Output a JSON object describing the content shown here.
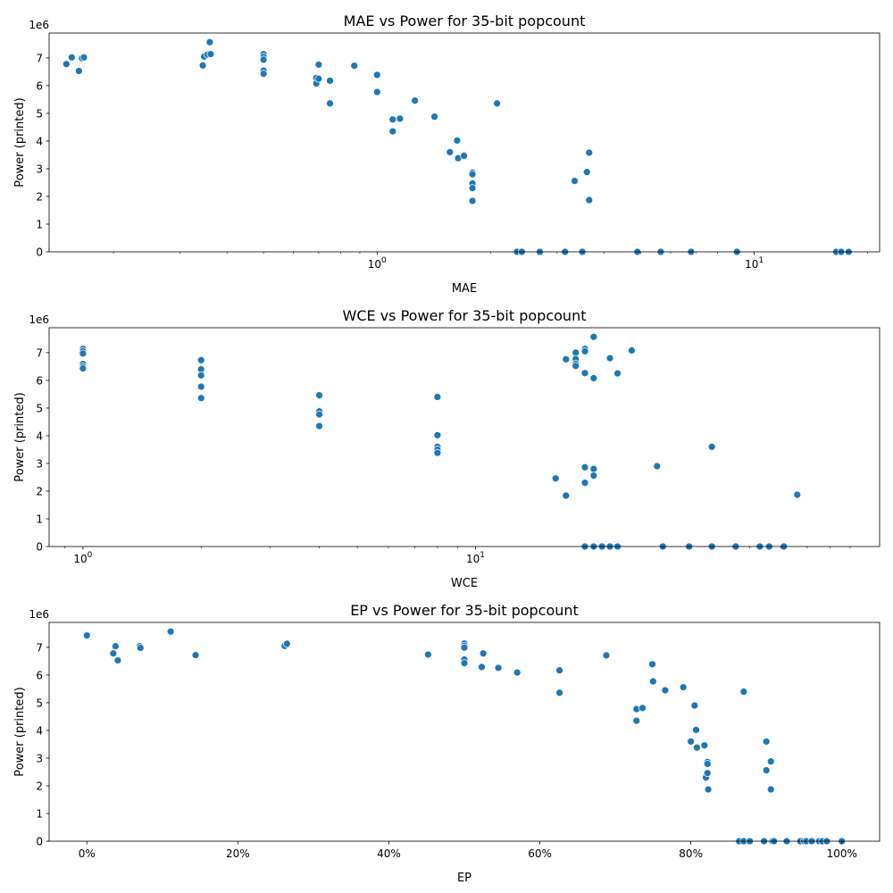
{
  "chart_data": [
    {
      "type": "scatter",
      "title": "MAE vs Power for 35-bit popcount",
      "xlabel": "MAE",
      "ylabel": "Power (printed)",
      "y_offset_text": "1e6",
      "xscale": "log",
      "xlim": [
        0.135,
        21.5
      ],
      "ylim": [
        0,
        7.9
      ],
      "xticks": [
        1,
        10
      ],
      "xtick_labels": [
        "10^0",
        "10^1"
      ],
      "yticks": [
        0,
        1,
        2,
        3,
        4,
        5,
        6,
        7
      ],
      "ytick_labels": [
        "0",
        "1",
        "2",
        "3",
        "4",
        "5",
        "6",
        "7"
      ],
      "color": "#1f77b4",
      "grid": false,
      "points": [
        [
          0.15,
          6.78
        ],
        [
          0.155,
          7.02
        ],
        [
          0.162,
          6.53
        ],
        [
          0.165,
          6.99
        ],
        [
          0.167,
          7.02
        ],
        [
          0.345,
          6.73
        ],
        [
          0.348,
          7.05
        ],
        [
          0.355,
          7.12
        ],
        [
          0.36,
          7.57
        ],
        [
          0.362,
          7.14
        ],
        [
          0.5,
          7.14
        ],
        [
          0.5,
          7.04
        ],
        [
          0.5,
          6.94
        ],
        [
          0.5,
          6.54
        ],
        [
          0.5,
          6.43
        ],
        [
          0.69,
          6.28
        ],
        [
          0.69,
          6.08
        ],
        [
          0.7,
          6.74
        ],
        [
          0.7,
          6.76
        ],
        [
          0.7,
          6.25
        ],
        [
          0.75,
          6.18
        ],
        [
          0.75,
          5.36
        ],
        [
          0.87,
          6.72
        ],
        [
          1.0,
          6.39
        ],
        [
          1.0,
          5.77
        ],
        [
          1.1,
          4.78
        ],
        [
          1.1,
          4.35
        ],
        [
          1.15,
          4.81
        ],
        [
          1.26,
          5.46
        ],
        [
          1.42,
          4.88
        ],
        [
          1.56,
          3.6
        ],
        [
          1.63,
          4.02
        ],
        [
          1.64,
          3.38
        ],
        [
          1.7,
          3.47
        ],
        [
          1.79,
          2.86
        ],
        [
          1.79,
          2.8
        ],
        [
          1.79,
          2.47
        ],
        [
          1.79,
          2.3
        ],
        [
          1.79,
          1.84
        ],
        [
          2.08,
          5.36
        ],
        [
          2.35,
          0
        ],
        [
          2.42,
          0
        ],
        [
          2.7,
          0
        ],
        [
          3.15,
          0
        ],
        [
          3.34,
          2.56
        ],
        [
          3.5,
          0
        ],
        [
          3.6,
          2.88
        ],
        [
          3.65,
          3.58
        ],
        [
          3.65,
          1.87
        ],
        [
          4.9,
          0
        ],
        [
          5.65,
          0
        ],
        [
          6.8,
          0
        ],
        [
          9.0,
          0
        ],
        [
          16.5,
          0
        ],
        [
          17.0,
          0
        ],
        [
          17.8,
          0
        ]
      ]
    },
    {
      "type": "scatter",
      "title": "WCE vs Power for 35-bit popcount",
      "xlabel": "WCE",
      "ylabel": "Power (printed)",
      "y_offset_text": "1e6",
      "xscale": "log",
      "xlim": [
        0.82,
        107
      ],
      "ylim": [
        0,
        7.9
      ],
      "xticks": [
        1,
        10
      ],
      "xtick_labels": [
        "10^0",
        "10^1"
      ],
      "yticks": [
        0,
        1,
        2,
        3,
        4,
        5,
        6,
        7
      ],
      "ytick_labels": [
        "0",
        "1",
        "2",
        "3",
        "4",
        "5",
        "6",
        "7"
      ],
      "color": "#1f77b4",
      "grid": false,
      "points": [
        [
          1,
          7.14
        ],
        [
          1,
          7.06
        ],
        [
          1,
          6.97
        ],
        [
          1,
          6.59
        ],
        [
          1,
          6.5
        ],
        [
          1,
          6.43
        ],
        [
          2,
          6.73
        ],
        [
          2,
          6.4
        ],
        [
          2,
          6.18
        ],
        [
          2,
          5.77
        ],
        [
          2,
          5.36
        ],
        [
          4,
          5.46
        ],
        [
          4,
          4.88
        ],
        [
          4,
          4.77
        ],
        [
          4,
          4.35
        ],
        [
          8,
          5.4
        ],
        [
          8,
          4.02
        ],
        [
          8,
          3.6
        ],
        [
          8,
          3.5
        ],
        [
          8,
          3.38
        ],
        [
          16,
          2.46
        ],
        [
          17,
          6.76
        ],
        [
          17,
          1.84
        ],
        [
          18,
          7.0
        ],
        [
          18,
          6.77
        ],
        [
          18,
          6.6
        ],
        [
          18,
          6.52
        ],
        [
          19,
          7.14
        ],
        [
          19,
          7.05
        ],
        [
          19,
          6.26
        ],
        [
          19,
          2.86
        ],
        [
          19,
          2.3
        ],
        [
          19,
          0
        ],
        [
          20,
          7.57
        ],
        [
          20,
          6.08
        ],
        [
          20,
          2.8
        ],
        [
          20,
          2.56
        ],
        [
          20,
          0
        ],
        [
          21,
          0
        ],
        [
          22,
          6.8
        ],
        [
          22,
          0
        ],
        [
          23,
          6.25
        ],
        [
          23,
          0
        ],
        [
          25,
          7.08
        ],
        [
          29,
          2.9
        ],
        [
          30,
          0
        ],
        [
          35,
          0
        ],
        [
          40,
          3.6
        ],
        [
          40,
          0
        ],
        [
          46,
          0
        ],
        [
          53,
          0
        ],
        [
          56,
          0
        ],
        [
          61,
          0
        ],
        [
          66,
          1.87
        ]
      ]
    },
    {
      "type": "scatter",
      "title": "EP vs Power for 35-bit popcount",
      "xlabel": "EP",
      "ylabel": "Power (printed)",
      "y_offset_text": "1e6",
      "xscale": "linear",
      "x_format": "percent",
      "xlim": [
        -0.05,
        1.05
      ],
      "ylim": [
        0,
        7.9
      ],
      "xticks": [
        0,
        0.2,
        0.4,
        0.6,
        0.8,
        1.0
      ],
      "xtick_labels": [
        "0%",
        "20%",
        "40%",
        "60%",
        "80%",
        "100%"
      ],
      "yticks": [
        0,
        1,
        2,
        3,
        4,
        5,
        6,
        7
      ],
      "ytick_labels": [
        "0",
        "1",
        "2",
        "3",
        "4",
        "5",
        "6",
        "7"
      ],
      "color": "#1f77b4",
      "grid": false,
      "points": [
        [
          0.0,
          7.43
        ],
        [
          0.035,
          6.78
        ],
        [
          0.038,
          7.04
        ],
        [
          0.041,
          6.53
        ],
        [
          0.07,
          7.04
        ],
        [
          0.071,
          6.98
        ],
        [
          0.111,
          7.57
        ],
        [
          0.144,
          6.72
        ],
        [
          0.262,
          7.05
        ],
        [
          0.265,
          7.13
        ],
        [
          0.452,
          6.74
        ],
        [
          0.5,
          7.14
        ],
        [
          0.5,
          7.06
        ],
        [
          0.5,
          6.99
        ],
        [
          0.5,
          6.56
        ],
        [
          0.5,
          6.43
        ],
        [
          0.523,
          6.29
        ],
        [
          0.525,
          6.78
        ],
        [
          0.545,
          6.26
        ],
        [
          0.57,
          6.09
        ],
        [
          0.626,
          6.17
        ],
        [
          0.626,
          5.36
        ],
        [
          0.688,
          6.71
        ],
        [
          0.728,
          4.77
        ],
        [
          0.728,
          4.35
        ],
        [
          0.736,
          4.81
        ],
        [
          0.749,
          6.39
        ],
        [
          0.75,
          5.77
        ],
        [
          0.766,
          5.45
        ],
        [
          0.79,
          5.56
        ],
        [
          0.8,
          3.6
        ],
        [
          0.805,
          4.9
        ],
        [
          0.807,
          4.02
        ],
        [
          0.808,
          3.38
        ],
        [
          0.818,
          3.46
        ],
        [
          0.822,
          2.86
        ],
        [
          0.822,
          2.79
        ],
        [
          0.82,
          2.3
        ],
        [
          0.822,
          2.46
        ],
        [
          0.823,
          1.87
        ],
        [
          0.87,
          5.4
        ],
        [
          0.9,
          3.6
        ],
        [
          0.9,
          2.56
        ],
        [
          0.906,
          2.88
        ],
        [
          0.906,
          1.87
        ],
        [
          0.864,
          0
        ],
        [
          0.87,
          0
        ],
        [
          0.878,
          0
        ],
        [
          0.897,
          0
        ],
        [
          0.908,
          0
        ],
        [
          0.91,
          0
        ],
        [
          0.927,
          0
        ],
        [
          0.945,
          0
        ],
        [
          0.95,
          0
        ],
        [
          0.953,
          0
        ],
        [
          0.96,
          0
        ],
        [
          0.97,
          0
        ],
        [
          0.974,
          0
        ],
        [
          0.98,
          0
        ],
        [
          1.0,
          0
        ]
      ]
    }
  ]
}
